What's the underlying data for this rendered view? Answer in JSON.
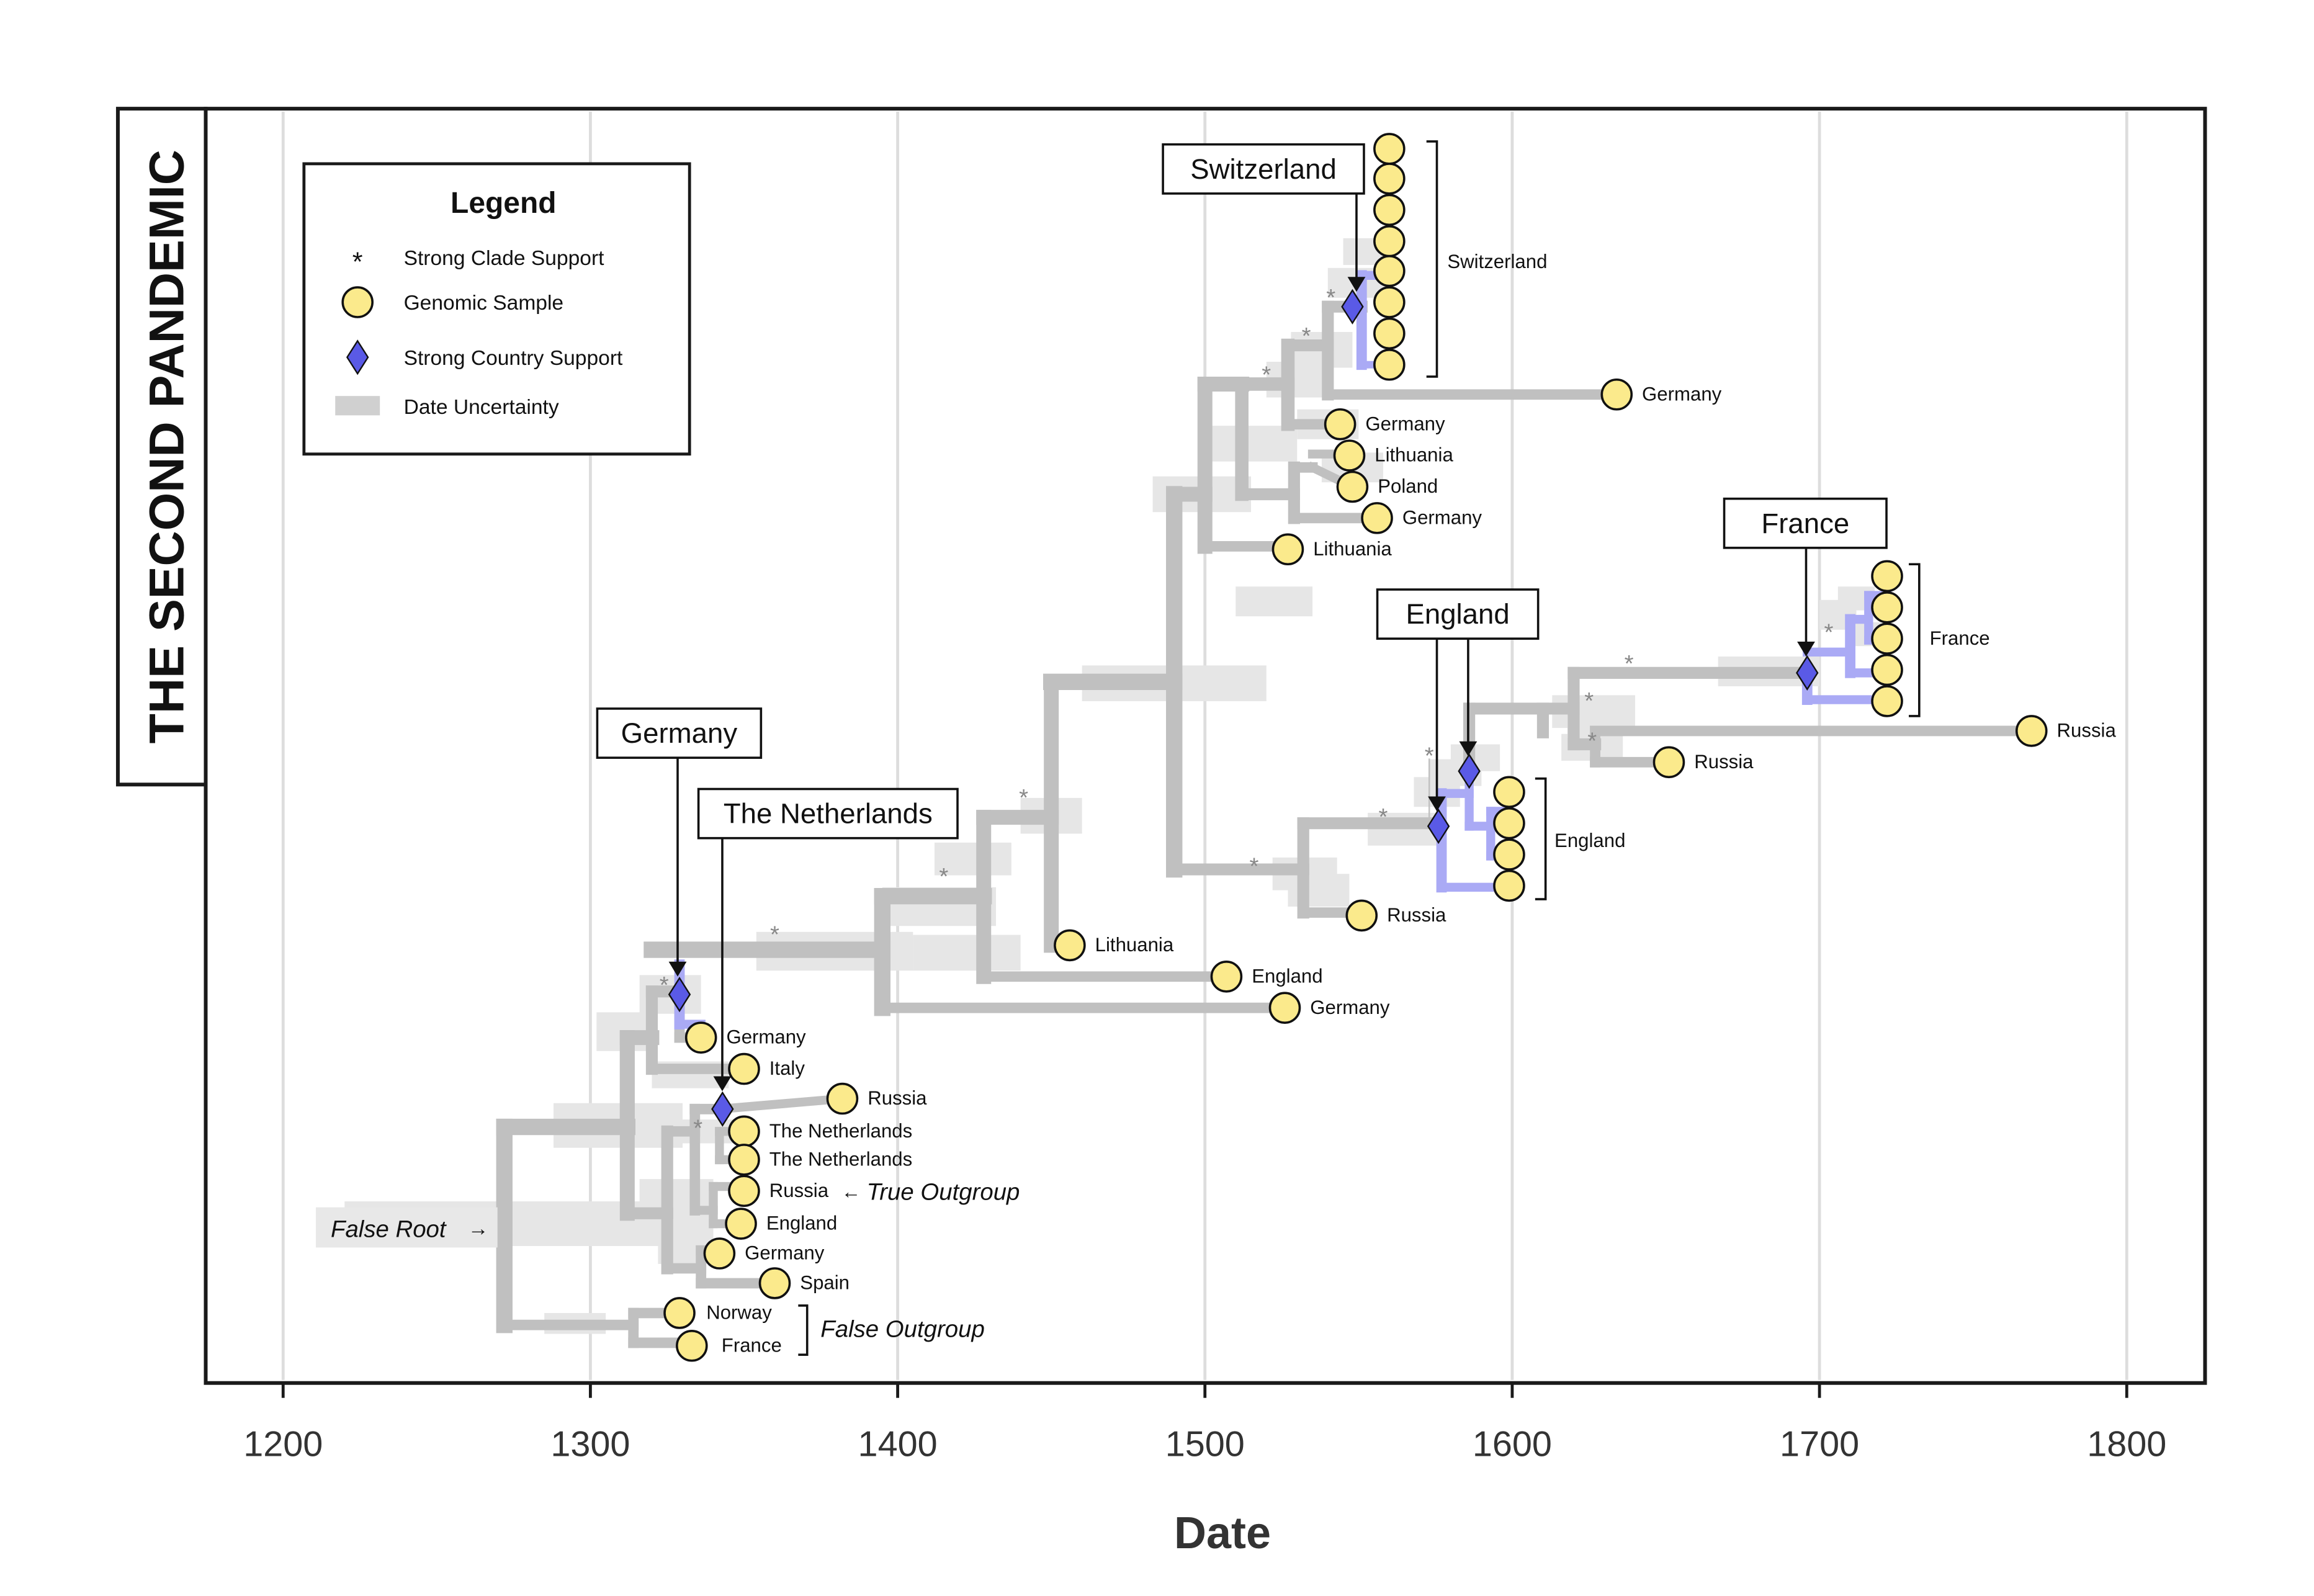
{
  "side_title": "THE SECOND PANDEMIC",
  "axis": {
    "xlabel": "Date",
    "ticks": [
      1200,
      1300,
      1400,
      1500,
      1600,
      1700,
      1800
    ],
    "xlim": [
      1175,
      1825
    ]
  },
  "legend": {
    "title": "Legend",
    "items": [
      {
        "symbol": "asterisk",
        "label": "Strong Clade Support"
      },
      {
        "symbol": "circle",
        "label": "Genomic Sample"
      },
      {
        "symbol": "diamond",
        "label": "Strong Country Support"
      },
      {
        "symbol": "bar",
        "label": "Date Uncertainty"
      }
    ]
  },
  "colors": {
    "branch": "#c0c0c0",
    "uncertainty": "#e6e6e6",
    "country_clade": "#aaaaf5",
    "diamond": "#5a5ae6",
    "sample_fill": "#fbea8c",
    "grid": "#dddddd"
  },
  "country_callouts": [
    "Switzerland",
    "France",
    "England",
    "Germany",
    "The Netherlands"
  ],
  "clade_brackets": [
    "Switzerland",
    "France",
    "England"
  ],
  "leaves": [
    {
      "label": "Germany",
      "date": 1634
    },
    {
      "label": "Germany",
      "date": 1544
    },
    {
      "label": "Lithuania",
      "date": 1547
    },
    {
      "label": "Poland",
      "date": 1548
    },
    {
      "label": "Germany",
      "date": 1556
    },
    {
      "label": "Lithuania",
      "date": 1527
    },
    {
      "label": "Russia",
      "date": 1769
    },
    {
      "label": "Russia",
      "date": 1651
    },
    {
      "label": "Russia",
      "date": 1551
    },
    {
      "label": "Lithuania",
      "date": 1456
    },
    {
      "label": "England",
      "date": 1507
    },
    {
      "label": "Germany",
      "date": 1526
    },
    {
      "label": "Germany",
      "date": 1336
    },
    {
      "label": "Italy",
      "date": 1350
    },
    {
      "label": "Russia",
      "date": 1382
    },
    {
      "label": "The Netherlands",
      "date": 1350
    },
    {
      "label": "The Netherlands",
      "date": 1350
    },
    {
      "label": "Russia",
      "date": 1350
    },
    {
      "label": "England",
      "date": 1349
    },
    {
      "label": "Germany",
      "date": 1342
    },
    {
      "label": "Spain",
      "date": 1360
    },
    {
      "label": "Norway",
      "date": 1329
    },
    {
      "label": "France",
      "date": 1333
    }
  ],
  "annotations": {
    "false_root": "False Root",
    "true_outgroup": "True Outgroup",
    "false_outgroup": "False Outgroup"
  }
}
